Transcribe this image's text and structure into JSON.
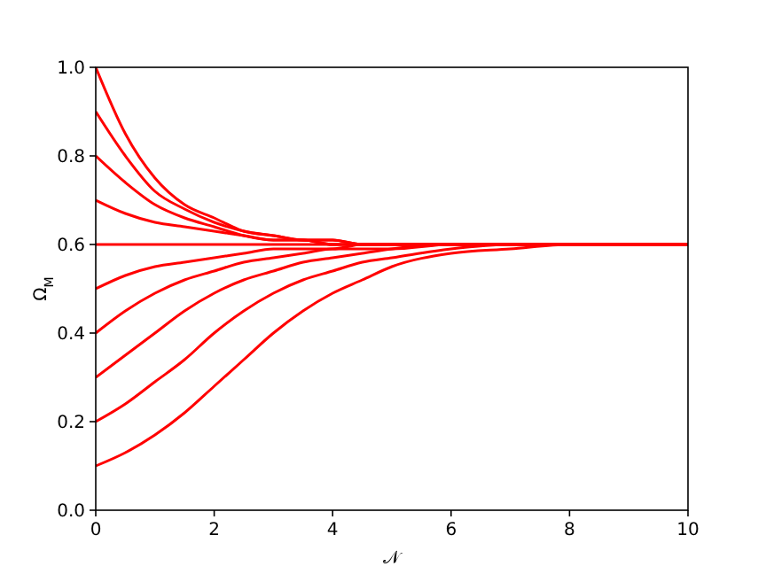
{
  "chart_data": {
    "type": "line",
    "xlabel": "𝒩",
    "ylabel": "Ω$_{M}$",
    "x": [
      0,
      0.5,
      1,
      1.5,
      2,
      2.5,
      3,
      3.5,
      4,
      4.5,
      5,
      6,
      7,
      8,
      9,
      10
    ],
    "series": [
      {
        "color": "#ff0000",
        "values": [
          1.0,
          0.85,
          0.75,
          0.69,
          0.66,
          0.63,
          0.62,
          0.61,
          0.61,
          0.6,
          0.6,
          0.6,
          0.6,
          0.6,
          0.6,
          0.6
        ]
      },
      {
        "color": "#ff0000",
        "values": [
          0.9,
          0.8,
          0.72,
          0.68,
          0.65,
          0.63,
          0.62,
          0.61,
          0.61,
          0.6,
          0.6,
          0.6,
          0.6,
          0.6,
          0.6,
          0.6
        ]
      },
      {
        "color": "#ff0000",
        "values": [
          0.8,
          0.74,
          0.69,
          0.66,
          0.64,
          0.62,
          0.61,
          0.61,
          0.6,
          0.6,
          0.6,
          0.6,
          0.6,
          0.6,
          0.6,
          0.6
        ]
      },
      {
        "color": "#ff0000",
        "values": [
          0.7,
          0.67,
          0.65,
          0.64,
          0.63,
          0.62,
          0.61,
          0.61,
          0.6,
          0.6,
          0.6,
          0.6,
          0.6,
          0.6,
          0.6,
          0.6
        ]
      },
      {
        "color": "#ff0000",
        "values": [
          0.6,
          0.6,
          0.6,
          0.6,
          0.6,
          0.6,
          0.6,
          0.6,
          0.6,
          0.6,
          0.6,
          0.6,
          0.6,
          0.6,
          0.6,
          0.6
        ]
      },
      {
        "color": "#ff0000",
        "values": [
          0.5,
          0.53,
          0.55,
          0.56,
          0.57,
          0.58,
          0.59,
          0.59,
          0.59,
          0.6,
          0.6,
          0.6,
          0.6,
          0.6,
          0.6,
          0.6
        ]
      },
      {
        "color": "#ff0000",
        "values": [
          0.4,
          0.45,
          0.49,
          0.52,
          0.54,
          0.56,
          0.57,
          0.58,
          0.59,
          0.59,
          0.59,
          0.6,
          0.6,
          0.6,
          0.6,
          0.6
        ]
      },
      {
        "color": "#ff0000",
        "values": [
          0.3,
          0.35,
          0.4,
          0.45,
          0.49,
          0.52,
          0.54,
          0.56,
          0.57,
          0.58,
          0.59,
          0.6,
          0.6,
          0.6,
          0.6,
          0.6
        ]
      },
      {
        "color": "#ff0000",
        "values": [
          0.2,
          0.24,
          0.29,
          0.34,
          0.4,
          0.45,
          0.49,
          0.52,
          0.54,
          0.56,
          0.57,
          0.59,
          0.6,
          0.6,
          0.6,
          0.6
        ]
      },
      {
        "color": "#ff0000",
        "values": [
          0.1,
          0.13,
          0.17,
          0.22,
          0.28,
          0.34,
          0.4,
          0.45,
          0.49,
          0.52,
          0.55,
          0.58,
          0.59,
          0.6,
          0.6,
          0.6
        ]
      }
    ],
    "xlim": [
      0,
      10
    ],
    "ylim": [
      0,
      1
    ],
    "xticks": [
      0,
      2,
      4,
      6,
      8,
      10
    ],
    "yticks": [
      {
        "value": 0,
        "label": "0.0"
      },
      {
        "value": 0.2,
        "label": "0.2"
      },
      {
        "value": 0.4,
        "label": "0.4"
      },
      {
        "value": 0.6,
        "label": "0.6"
      },
      {
        "value": 0.8,
        "label": "0.8"
      },
      {
        "value": 1,
        "label": "1.0"
      }
    ],
    "grid": false
  }
}
